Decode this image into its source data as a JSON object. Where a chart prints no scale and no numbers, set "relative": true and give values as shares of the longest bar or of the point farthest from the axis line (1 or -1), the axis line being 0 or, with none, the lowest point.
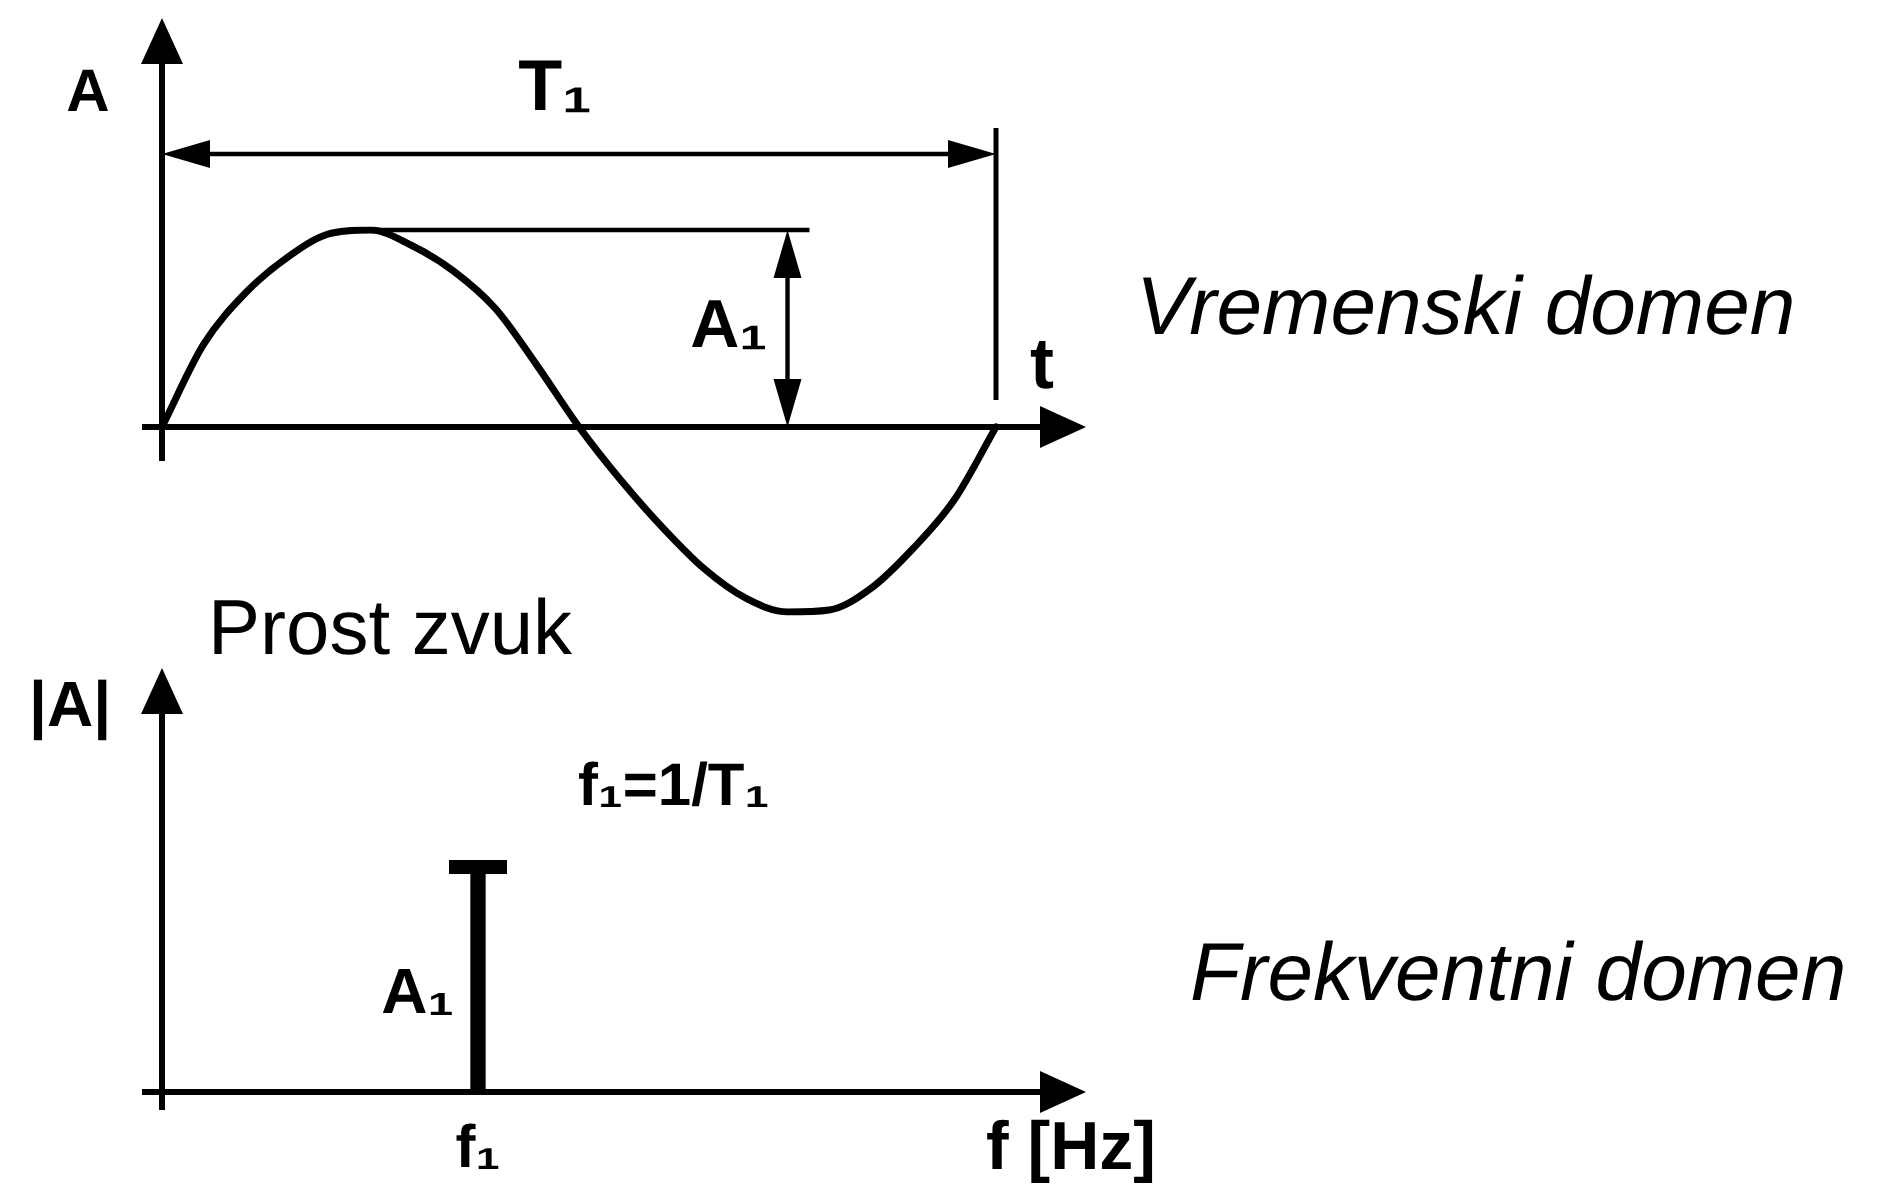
{
  "chart_data": [
    {
      "type": "line",
      "categories": [
        null,
        null,
        null,
        null,
        null,
        null,
        null,
        null,
        null,
        null,
        null,
        null,
        null,
        null,
        null,
        null,
        null,
        null,
        null,
        null,
        null
      ],
      "values": [
        0,
        0.42,
        0.68,
        0.86,
        0.98,
        1,
        0.92,
        0.79,
        0.6,
        0.31,
        0,
        -0.27,
        -0.51,
        -0.72,
        -0.87,
        -0.94,
        -0.93,
        -0.82,
        -0.62,
        -0.37,
        0
      ],
      "relative": true,
      "color": "#000000",
      "xlabel": "t",
      "ylabel": "A",
      "annotations": [
        "T₁",
        "A₁",
        "Vremenski domen"
      ]
    },
    {
      "type": "bar",
      "title": "Prost zvuk",
      "categories": [
        "f₁"
      ],
      "values": [
        1
      ],
      "relative": true,
      "color": "#000000",
      "xlabel": "f [Hz]",
      "ylabel": "|A|",
      "annotations": [
        "f₁=1/T₁",
        "A₁",
        "Frekventni domen"
      ]
    }
  ]
}
